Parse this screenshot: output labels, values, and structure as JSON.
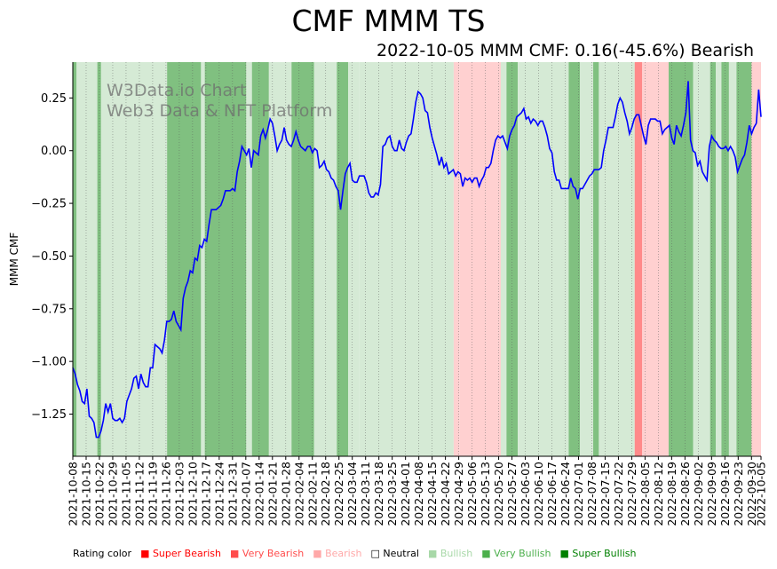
{
  "title": "CMF MMM TS",
  "subtitle": "2022-10-05 MMM CMF: 0.16(-45.6%) Bearish",
  "watermark": [
    "W3Data.io Chart",
    "Web3 Data & NFT Platform"
  ],
  "legend": {
    "label": "Rating color",
    "items": [
      {
        "text": "Super Bearish",
        "color": "#ff0000"
      },
      {
        "text": "Very Bearish",
        "color": "#ff4c4c"
      },
      {
        "text": "Bearish",
        "color": "#ffa8a8"
      },
      {
        "text": "Neutral",
        "color": "#000000"
      },
      {
        "text": "Bullish",
        "color": "#a8d8a8"
      },
      {
        "text": "Very Bullish",
        "color": "#4caf4c"
      },
      {
        "text": "Super Bullish",
        "color": "#008000"
      }
    ]
  },
  "chart_data": {
    "type": "line",
    "ylabel": "MMM CMF",
    "xlabel": "",
    "ylim": [
      -1.45,
      0.42
    ],
    "yticks": [
      -1.25,
      -1.0,
      -0.75,
      -0.5,
      -0.25,
      0.0,
      0.25
    ],
    "ytick_labels": [
      "−1.25",
      "−1.00",
      "−0.75",
      "−0.50",
      "−0.25",
      "0.00",
      "0.25"
    ],
    "x_start": "2021-10-08",
    "x_end": "2022-10-05",
    "xtick_labels": [
      "2021-10-08",
      "2021-10-15",
      "2021-10-22",
      "2021-10-29",
      "2021-11-05",
      "2021-11-12",
      "2021-11-19",
      "2021-11-26",
      "2021-12-03",
      "2021-12-10",
      "2021-12-17",
      "2021-12-24",
      "2021-12-31",
      "2022-01-07",
      "2022-01-14",
      "2022-01-21",
      "2022-01-28",
      "2022-02-04",
      "2022-02-11",
      "2022-02-18",
      "2022-02-25",
      "2022-03-04",
      "2022-03-11",
      "2022-03-18",
      "2022-03-25",
      "2022-04-01",
      "2022-04-08",
      "2022-04-15",
      "2022-04-22",
      "2022-04-29",
      "2022-05-06",
      "2022-05-13",
      "2022-05-20",
      "2022-05-27",
      "2022-06-03",
      "2022-06-10",
      "2022-06-17",
      "2022-06-24",
      "2022-07-01",
      "2022-07-08",
      "2022-07-15",
      "2022-07-22",
      "2022-07-29",
      "2022-08-05",
      "2022-08-12",
      "2022-08-19",
      "2022-08-26",
      "2022-09-02",
      "2022-09-09",
      "2022-09-16",
      "2022-09-23",
      "2022-09-30",
      "2022-10-05"
    ],
    "series": [
      {
        "name": "MMM CMF",
        "color": "#0000ff",
        "values": [
          -1.03,
          -1.06,
          -1.11,
          -1.14,
          -1.19,
          -1.2,
          -1.13,
          -1.26,
          -1.27,
          -1.29,
          -1.36,
          -1.36,
          -1.33,
          -1.28,
          -1.2,
          -1.24,
          -1.2,
          -1.27,
          -1.28,
          -1.28,
          -1.27,
          -1.29,
          -1.27,
          -1.19,
          -1.16,
          -1.13,
          -1.08,
          -1.07,
          -1.13,
          -1.06,
          -1.1,
          -1.12,
          -1.12,
          -1.03,
          -1.03,
          -0.92,
          -0.93,
          -0.94,
          -0.96,
          -0.9,
          -0.81,
          -0.81,
          -0.8,
          -0.76,
          -0.81,
          -0.83,
          -0.85,
          -0.7,
          -0.65,
          -0.62,
          -0.57,
          -0.58,
          -0.51,
          -0.52,
          -0.45,
          -0.46,
          -0.42,
          -0.43,
          -0.35,
          -0.28,
          -0.28,
          -0.28,
          -0.27,
          -0.26,
          -0.23,
          -0.19,
          -0.19,
          -0.19,
          -0.18,
          -0.19,
          -0.1,
          -0.05,
          0.02,
          0.0,
          -0.02,
          0.01,
          -0.08,
          0.0,
          -0.01,
          -0.02,
          0.07,
          0.1,
          0.06,
          0.1,
          0.15,
          0.13,
          0.07,
          0.0,
          0.03,
          0.05,
          0.11,
          0.05,
          0.03,
          0.02,
          0.05,
          0.09,
          0.05,
          0.02,
          0.01,
          0.0,
          0.02,
          0.02,
          -0.01,
          0.01,
          0.0,
          -0.08,
          -0.07,
          -0.05,
          -0.09,
          -0.1,
          -0.13,
          -0.14,
          -0.17,
          -0.19,
          -0.28,
          -0.19,
          -0.11,
          -0.08,
          -0.06,
          -0.14,
          -0.15,
          -0.15,
          -0.12,
          -0.12,
          -0.12,
          -0.15,
          -0.2,
          -0.22,
          -0.22,
          -0.2,
          -0.21,
          -0.16,
          0.02,
          0.03,
          0.06,
          0.07,
          0.02,
          0.0,
          0.0,
          0.05,
          0.01,
          0.0,
          0.04,
          0.07,
          0.08,
          0.15,
          0.23,
          0.28,
          0.27,
          0.25,
          0.19,
          0.18,
          0.11,
          0.06,
          0.02,
          -0.02,
          -0.07,
          -0.03,
          -0.08,
          -0.06,
          -0.11,
          -0.1,
          -0.09,
          -0.12,
          -0.1,
          -0.11,
          -0.17,
          -0.13,
          -0.14,
          -0.13,
          -0.15,
          -0.13,
          -0.13,
          -0.17,
          -0.14,
          -0.12,
          -0.08,
          -0.08,
          -0.06,
          0.0,
          0.05,
          0.07,
          0.06,
          0.07,
          0.04,
          0.01,
          0.07,
          0.1,
          0.12,
          0.16,
          0.17,
          0.18,
          0.2,
          0.15,
          0.16,
          0.13,
          0.15,
          0.14,
          0.12,
          0.14,
          0.14,
          0.11,
          0.07,
          0.01,
          -0.01,
          -0.1,
          -0.14,
          -0.14,
          -0.18,
          -0.18,
          -0.18,
          -0.18,
          -0.13,
          -0.17,
          -0.18,
          -0.23,
          -0.18,
          -0.18,
          -0.16,
          -0.14,
          -0.12,
          -0.11,
          -0.09,
          -0.09,
          -0.09,
          -0.08,
          0.0,
          0.05,
          0.11,
          0.11,
          0.11,
          0.16,
          0.22,
          0.25,
          0.23,
          0.18,
          0.14,
          0.08,
          0.11,
          0.15,
          0.17,
          0.17,
          0.12,
          0.07,
          0.03,
          0.12,
          0.15,
          0.15,
          0.15,
          0.14,
          0.14,
          0.08,
          0.1,
          0.11,
          0.12,
          0.06,
          0.03,
          0.12,
          0.09,
          0.07,
          0.12,
          0.18,
          0.33,
          0.05,
          0.0,
          -0.01,
          -0.07,
          -0.05,
          -0.1,
          -0.12,
          -0.14,
          0.02,
          0.07,
          0.05,
          0.04,
          0.02,
          0.01,
          0.01,
          0.02,
          0.0,
          0.02,
          0.0,
          -0.03,
          -0.1,
          -0.07,
          -0.04,
          -0.02,
          0.04,
          0.12,
          0.08,
          0.11,
          0.13,
          0.29,
          0.16
        ]
      }
    ],
    "rating_segments": [
      {
        "from": 0,
        "to": 2,
        "rating": "Very Bullish"
      },
      {
        "from": 2,
        "to": 13,
        "rating": "Bullish"
      },
      {
        "from": 13,
        "to": 15,
        "rating": "Very Bullish"
      },
      {
        "from": 15,
        "to": 50,
        "rating": "Bullish"
      },
      {
        "from": 50,
        "to": 68,
        "rating": "Very Bullish"
      },
      {
        "from": 68,
        "to": 70,
        "rating": "Bullish"
      },
      {
        "from": 70,
        "to": 92,
        "rating": "Very Bullish"
      },
      {
        "from": 92,
        "to": 95,
        "rating": "Bullish"
      },
      {
        "from": 95,
        "to": 104,
        "rating": "Very Bullish"
      },
      {
        "from": 104,
        "to": 116,
        "rating": "Bullish"
      },
      {
        "from": 116,
        "to": 128,
        "rating": "Very Bullish"
      },
      {
        "from": 128,
        "to": 140,
        "rating": "Bullish"
      },
      {
        "from": 140,
        "to": 146,
        "rating": "Very Bullish"
      },
      {
        "from": 146,
        "to": 152,
        "rating": "Bullish"
      },
      {
        "from": 152,
        "to": 202,
        "rating": "Bullish"
      },
      {
        "from": 202,
        "to": 205,
        "rating": "Bearish"
      },
      {
        "from": 205,
        "to": 227,
        "rating": "Bearish"
      },
      {
        "from": 227,
        "to": 230,
        "rating": "Bullish"
      },
      {
        "from": 230,
        "to": 236,
        "rating": "Very Bullish"
      },
      {
        "from": 236,
        "to": 263,
        "rating": "Bullish"
      },
      {
        "from": 263,
        "to": 269,
        "rating": "Very Bullish"
      },
      {
        "from": 269,
        "to": 276,
        "rating": "Bullish"
      },
      {
        "from": 276,
        "to": 279,
        "rating": "Very Bullish"
      },
      {
        "from": 279,
        "to": 298,
        "rating": "Bullish"
      },
      {
        "from": 298,
        "to": 302,
        "rating": "Very Bearish"
      },
      {
        "from": 302,
        "to": 316,
        "rating": "Bearish"
      },
      {
        "from": 316,
        "to": 329,
        "rating": "Very Bullish"
      },
      {
        "from": 329,
        "to": 338,
        "rating": "Bullish"
      },
      {
        "from": 338,
        "to": 341,
        "rating": "Very Bullish"
      },
      {
        "from": 341,
        "to": 344,
        "rating": "Bullish"
      },
      {
        "from": 344,
        "to": 348,
        "rating": "Very Bullish"
      },
      {
        "from": 348,
        "to": 352,
        "rating": "Bullish"
      },
      {
        "from": 352,
        "to": 360,
        "rating": "Very Bullish"
      },
      {
        "from": 360,
        "to": 365,
        "rating": "Bearish"
      }
    ],
    "rating_fill": {
      "Super Bearish": "#ff7f7f",
      "Very Bearish": "#ff8a8a",
      "Bearish": "#ffd0d0",
      "Neutral": "#ffffff",
      "Bullish": "#d5ead5",
      "Very Bullish": "#80c080",
      "Super Bullish": "#3f9f3f"
    }
  }
}
